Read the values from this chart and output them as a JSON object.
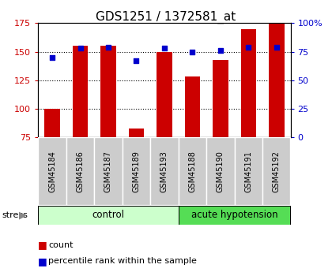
{
  "title": "GDS1251 / 1372581_at",
  "samples": [
    "GSM45184",
    "GSM45186",
    "GSM45187",
    "GSM45189",
    "GSM45193",
    "GSM45188",
    "GSM45190",
    "GSM45191",
    "GSM45192"
  ],
  "counts": [
    100,
    155,
    155,
    83,
    150,
    128,
    143,
    170,
    175
  ],
  "percentiles": [
    70,
    78,
    79,
    67,
    78,
    75,
    76,
    79,
    79
  ],
  "ylim_left": [
    75,
    175
  ],
  "ylim_right": [
    0,
    100
  ],
  "yticks_left": [
    75,
    100,
    125,
    150,
    175
  ],
  "yticks_right": [
    0,
    25,
    50,
    75,
    100
  ],
  "ytick_labels_right": [
    "0",
    "25",
    "50",
    "75",
    "100%"
  ],
  "bar_color": "#cc0000",
  "dot_color": "#0000cc",
  "bar_bottom": 75,
  "control_color": "#ccffcc",
  "acute_color": "#55dd55",
  "gray_cell_color": "#cccccc",
  "groups": [
    {
      "label": "control",
      "start": 0,
      "end": 5
    },
    {
      "label": "acute hypotension",
      "start": 5,
      "end": 9
    }
  ],
  "stress_label": "stress",
  "legend_count": "count",
  "legend_pct": "percentile rank within the sample",
  "title_fontsize": 11,
  "tick_fontsize": 8,
  "bar_width": 0.55
}
